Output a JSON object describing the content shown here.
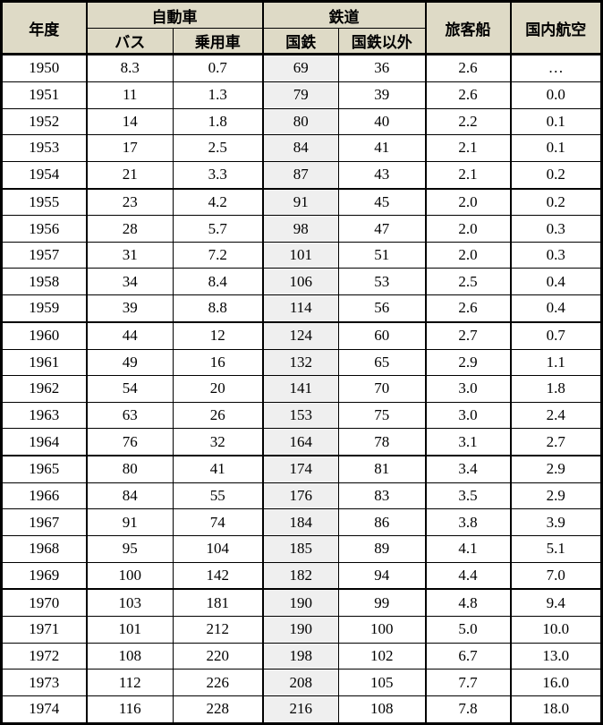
{
  "colors": {
    "header_bg": "#dedac6",
    "jnr_column_bg": "#efefef",
    "border": "#000000",
    "page_bg": "#ffffff"
  },
  "table": {
    "header": {
      "year": "年度",
      "car_group": "自動車",
      "rail_group": "鉄道",
      "bus": "バス",
      "passenger_car": "乗用車",
      "jnr": "国鉄",
      "non_jnr": "国鉄以外",
      "ship": "旅客船",
      "air": "国内航空"
    },
    "group_start_years": [
      "1955",
      "1960",
      "1965",
      "1970"
    ],
    "rows": [
      [
        "1950",
        "8.3",
        "0.7",
        "69",
        "36",
        "2.6",
        "…"
      ],
      [
        "1951",
        "11",
        "1.3",
        "79",
        "39",
        "2.6",
        "0.0"
      ],
      [
        "1952",
        "14",
        "1.8",
        "80",
        "40",
        "2.2",
        "0.1"
      ],
      [
        "1953",
        "17",
        "2.5",
        "84",
        "41",
        "2.1",
        "0.1"
      ],
      [
        "1954",
        "21",
        "3.3",
        "87",
        "43",
        "2.1",
        "0.2"
      ],
      [
        "1955",
        "23",
        "4.2",
        "91",
        "45",
        "2.0",
        "0.2"
      ],
      [
        "1956",
        "28",
        "5.7",
        "98",
        "47",
        "2.0",
        "0.3"
      ],
      [
        "1957",
        "31",
        "7.2",
        "101",
        "51",
        "2.0",
        "0.3"
      ],
      [
        "1958",
        "34",
        "8.4",
        "106",
        "53",
        "2.5",
        "0.4"
      ],
      [
        "1959",
        "39",
        "8.8",
        "114",
        "56",
        "2.6",
        "0.4"
      ],
      [
        "1960",
        "44",
        "12",
        "124",
        "60",
        "2.7",
        "0.7"
      ],
      [
        "1961",
        "49",
        "16",
        "132",
        "65",
        "2.9",
        "1.1"
      ],
      [
        "1962",
        "54",
        "20",
        "141",
        "70",
        "3.0",
        "1.8"
      ],
      [
        "1963",
        "63",
        "26",
        "153",
        "75",
        "3.0",
        "2.4"
      ],
      [
        "1964",
        "76",
        "32",
        "164",
        "78",
        "3.1",
        "2.7"
      ],
      [
        "1965",
        "80",
        "41",
        "174",
        "81",
        "3.4",
        "2.9"
      ],
      [
        "1966",
        "84",
        "55",
        "176",
        "83",
        "3.5",
        "2.9"
      ],
      [
        "1967",
        "91",
        "74",
        "184",
        "86",
        "3.8",
        "3.9"
      ],
      [
        "1968",
        "95",
        "104",
        "185",
        "89",
        "4.1",
        "5.1"
      ],
      [
        "1969",
        "100",
        "142",
        "182",
        "94",
        "4.4",
        "7.0"
      ],
      [
        "1970",
        "103",
        "181",
        "190",
        "99",
        "4.8",
        "9.4"
      ],
      [
        "1971",
        "101",
        "212",
        "190",
        "100",
        "5.0",
        "10.0"
      ],
      [
        "1972",
        "108",
        "220",
        "198",
        "102",
        "6.7",
        "13.0"
      ],
      [
        "1973",
        "112",
        "226",
        "208",
        "105",
        "7.7",
        "16.0"
      ],
      [
        "1974",
        "116",
        "228",
        "216",
        "108",
        "7.8",
        "18.0"
      ]
    ]
  },
  "chart_data": {
    "type": "table",
    "title": "",
    "categories": [
      "1950",
      "1951",
      "1952",
      "1953",
      "1954",
      "1955",
      "1956",
      "1957",
      "1958",
      "1959",
      "1960",
      "1961",
      "1962",
      "1963",
      "1964",
      "1965",
      "1966",
      "1967",
      "1968",
      "1969",
      "1970",
      "1971",
      "1972",
      "1973",
      "1974"
    ],
    "series": [
      {
        "name": "自動車 バス",
        "values": [
          8.3,
          11,
          14,
          17,
          21,
          23,
          28,
          31,
          34,
          39,
          44,
          49,
          54,
          63,
          76,
          80,
          84,
          91,
          95,
          100,
          103,
          101,
          108,
          112,
          116
        ]
      },
      {
        "name": "自動車 乗用車",
        "values": [
          0.7,
          1.3,
          1.8,
          2.5,
          3.3,
          4.2,
          5.7,
          7.2,
          8.4,
          8.8,
          12,
          16,
          20,
          26,
          32,
          41,
          55,
          74,
          104,
          142,
          181,
          212,
          220,
          226,
          228
        ]
      },
      {
        "name": "鉄道 国鉄",
        "values": [
          69,
          79,
          80,
          84,
          87,
          91,
          98,
          101,
          106,
          114,
          124,
          132,
          141,
          153,
          164,
          174,
          176,
          184,
          185,
          182,
          190,
          190,
          198,
          208,
          216
        ]
      },
      {
        "name": "鉄道 国鉄以外",
        "values": [
          36,
          39,
          40,
          41,
          43,
          45,
          47,
          51,
          53,
          56,
          60,
          65,
          70,
          75,
          78,
          81,
          83,
          86,
          89,
          94,
          99,
          100,
          102,
          105,
          108
        ]
      },
      {
        "name": "旅客船",
        "values": [
          2.6,
          2.6,
          2.2,
          2.1,
          2.1,
          2.0,
          2.0,
          2.0,
          2.5,
          2.6,
          2.7,
          2.9,
          3.0,
          3.0,
          3.1,
          3.4,
          3.5,
          3.8,
          4.1,
          4.4,
          4.8,
          5.0,
          6.7,
          7.7,
          7.8
        ]
      },
      {
        "name": "国内航空",
        "values": [
          null,
          0.0,
          0.1,
          0.1,
          0.2,
          0.2,
          0.3,
          0.3,
          0.4,
          0.4,
          0.7,
          1.1,
          1.8,
          2.4,
          2.7,
          2.9,
          2.9,
          3.9,
          5.1,
          7.0,
          9.4,
          10.0,
          13.0,
          16.0,
          18.0
        ]
      }
    ],
    "notes": "1950 国内航空 value shown as '…' (no data); x-axis is fiscal year 年度"
  }
}
